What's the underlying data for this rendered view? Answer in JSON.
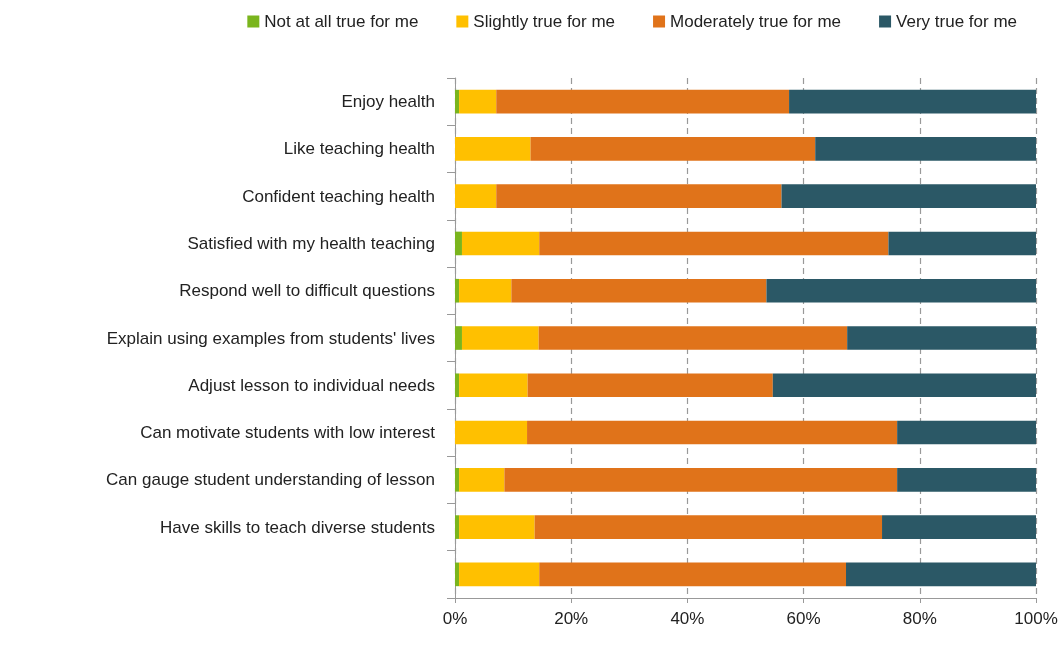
{
  "chart_data": {
    "type": "bar",
    "orientation": "horizontal",
    "stacked": true,
    "categories": [
      "Enjoy health",
      "Like teaching health",
      "Confident teaching health",
      "Satisfied with my health teaching",
      "Respond well to difficult questions",
      "Explain using examples from students' lives",
      "Adjust lesson to individual needs",
      "Can motivate students with low interest",
      "Can gauge student understanding of lesson",
      "Have skills to teach diverse students",
      null
    ],
    "series": [
      {
        "name": "Not at all true for me",
        "color": "#7ab51d",
        "values": [
          0.7,
          0,
          0,
          1.2,
          0.7,
          1.2,
          0.7,
          0,
          0.7,
          0.7,
          0.7
        ]
      },
      {
        "name": "Slightly true for me",
        "color": "#ffc000",
        "values": [
          6.4,
          13,
          7.1,
          13.3,
          9,
          13.2,
          11.8,
          12.4,
          7.8,
          13,
          13.8
        ]
      },
      {
        "name": "Moderately true for me",
        "color": "#e0731a",
        "values": [
          50.4,
          49,
          49.1,
          60.1,
          43.9,
          53.1,
          42.2,
          63.7,
          67.6,
          59.8,
          52.8
        ]
      },
      {
        "name": "Very true for me",
        "color": "#2b5866",
        "values": [
          42.5,
          38,
          43.8,
          25.4,
          46.4,
          32.5,
          45.3,
          23.9,
          23.9,
          26.5,
          32.7
        ]
      }
    ],
    "xlim": [
      0,
      100
    ],
    "xticks": [
      {
        "value": 0,
        "label": "0%"
      },
      {
        "value": 20,
        "label": "20%"
      },
      {
        "value": 40,
        "label": "40%"
      },
      {
        "value": 60,
        "label": "60%"
      },
      {
        "value": 80,
        "label": "80%"
      },
      {
        "value": 100,
        "label": "100%"
      }
    ],
    "grid": "x",
    "legend": "top"
  }
}
